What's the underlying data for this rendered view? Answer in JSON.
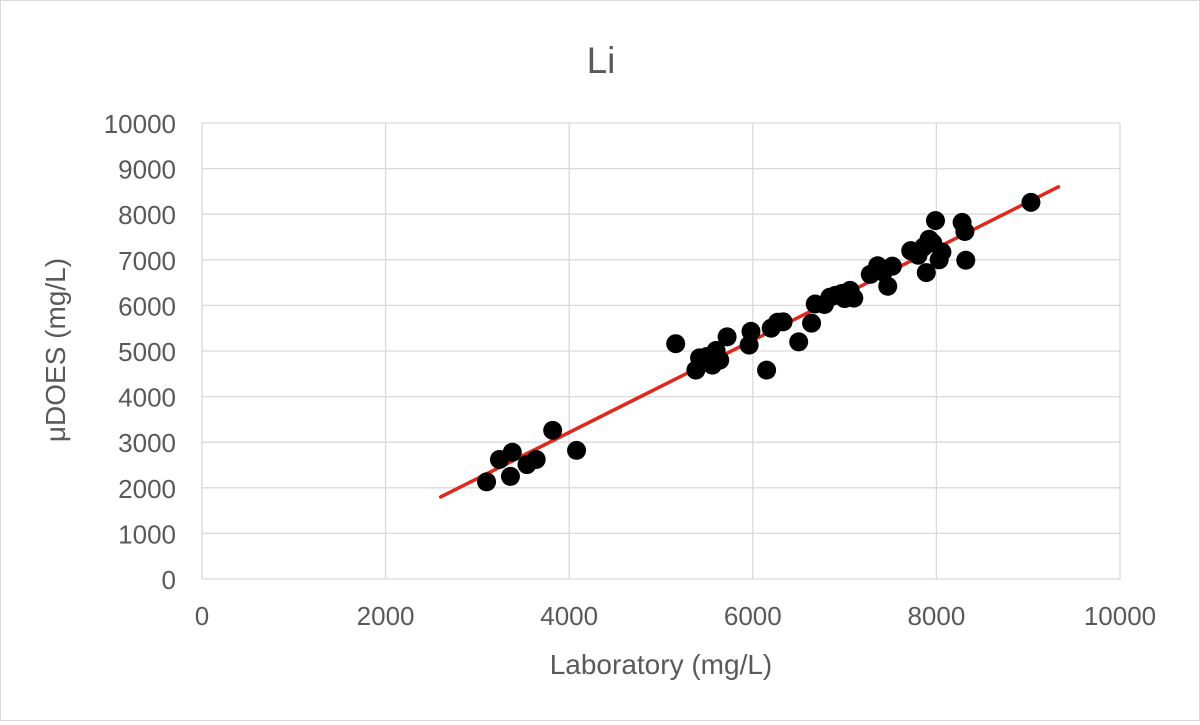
{
  "chart_data": {
    "type": "scatter",
    "title": "Li",
    "xlabel": "Laboratory (mg/L)",
    "ylabel": "μDOES (mg/L)",
    "xlim": [
      0,
      10000
    ],
    "ylim": [
      0,
      10000
    ],
    "x_ticks": [
      0,
      2000,
      4000,
      6000,
      8000,
      10000
    ],
    "y_ticks": [
      0,
      1000,
      2000,
      3000,
      4000,
      5000,
      6000,
      7000,
      8000,
      9000,
      10000
    ],
    "grid": true,
    "legend": "none",
    "marker_color": "#000000",
    "trendline_color": "#e0291d",
    "gridline_color": "#d9d9d9",
    "text_color": "#595959",
    "trendline": {
      "x": [
        2600,
        9330
      ],
      "y": [
        1800,
        8600
      ]
    },
    "points": [
      {
        "x": 3100,
        "y": 2130
      },
      {
        "x": 3240,
        "y": 2620
      },
      {
        "x": 3360,
        "y": 2250
      },
      {
        "x": 3380,
        "y": 2780
      },
      {
        "x": 3540,
        "y": 2510
      },
      {
        "x": 3640,
        "y": 2620
      },
      {
        "x": 3820,
        "y": 3260
      },
      {
        "x": 4080,
        "y": 2820
      },
      {
        "x": 5160,
        "y": 5160
      },
      {
        "x": 5380,
        "y": 4580
      },
      {
        "x": 5420,
        "y": 4850
      },
      {
        "x": 5500,
        "y": 4880
      },
      {
        "x": 5560,
        "y": 4690
      },
      {
        "x": 5600,
        "y": 5010
      },
      {
        "x": 5640,
        "y": 4800
      },
      {
        "x": 5720,
        "y": 5310
      },
      {
        "x": 5960,
        "y": 5130
      },
      {
        "x": 5980,
        "y": 5430
      },
      {
        "x": 6150,
        "y": 4580
      },
      {
        "x": 6200,
        "y": 5500
      },
      {
        "x": 6270,
        "y": 5630
      },
      {
        "x": 6330,
        "y": 5640
      },
      {
        "x": 6500,
        "y": 5200
      },
      {
        "x": 6640,
        "y": 5610
      },
      {
        "x": 6680,
        "y": 6030
      },
      {
        "x": 6780,
        "y": 6020
      },
      {
        "x": 6840,
        "y": 6180
      },
      {
        "x": 6900,
        "y": 6220
      },
      {
        "x": 6970,
        "y": 6260
      },
      {
        "x": 7000,
        "y": 6150
      },
      {
        "x": 7060,
        "y": 6330
      },
      {
        "x": 7100,
        "y": 6160
      },
      {
        "x": 7280,
        "y": 6680
      },
      {
        "x": 7360,
        "y": 6870
      },
      {
        "x": 7420,
        "y": 6730
      },
      {
        "x": 7470,
        "y": 6420
      },
      {
        "x": 7520,
        "y": 6860
      },
      {
        "x": 7720,
        "y": 7200
      },
      {
        "x": 7800,
        "y": 7100
      },
      {
        "x": 7860,
        "y": 7280
      },
      {
        "x": 7890,
        "y": 6720
      },
      {
        "x": 7920,
        "y": 7450
      },
      {
        "x": 7960,
        "y": 7370
      },
      {
        "x": 7990,
        "y": 7860
      },
      {
        "x": 8030,
        "y": 7000
      },
      {
        "x": 8060,
        "y": 7170
      },
      {
        "x": 8280,
        "y": 7820
      },
      {
        "x": 8310,
        "y": 7620
      },
      {
        "x": 8320,
        "y": 6990
      },
      {
        "x": 9030,
        "y": 8260
      }
    ]
  }
}
